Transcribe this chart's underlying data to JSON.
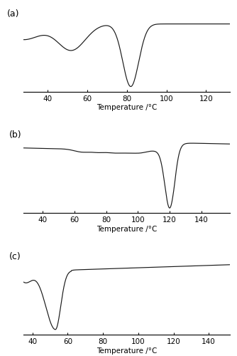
{
  "panel_a": {
    "label": "(a)",
    "xmin": 28,
    "xmax": 132,
    "xticks": [
      40,
      60,
      80,
      100,
      120
    ],
    "xlabel": "Temperature /°C"
  },
  "panel_b": {
    "label": "(b)",
    "xmin": 28,
    "xmax": 158,
    "xticks": [
      40,
      60,
      80,
      100,
      120,
      140
    ],
    "xlabel": "Temperature /°C"
  },
  "panel_c": {
    "label": "(c)",
    "xmin": 35,
    "xmax": 152,
    "xticks": [
      40,
      60,
      80,
      100,
      120,
      140
    ],
    "xlabel": "Temperature /°C"
  },
  "line_color": "#1a1a1a",
  "background_color": "#ffffff",
  "label_fontsize": 9,
  "tick_fontsize": 7.5
}
